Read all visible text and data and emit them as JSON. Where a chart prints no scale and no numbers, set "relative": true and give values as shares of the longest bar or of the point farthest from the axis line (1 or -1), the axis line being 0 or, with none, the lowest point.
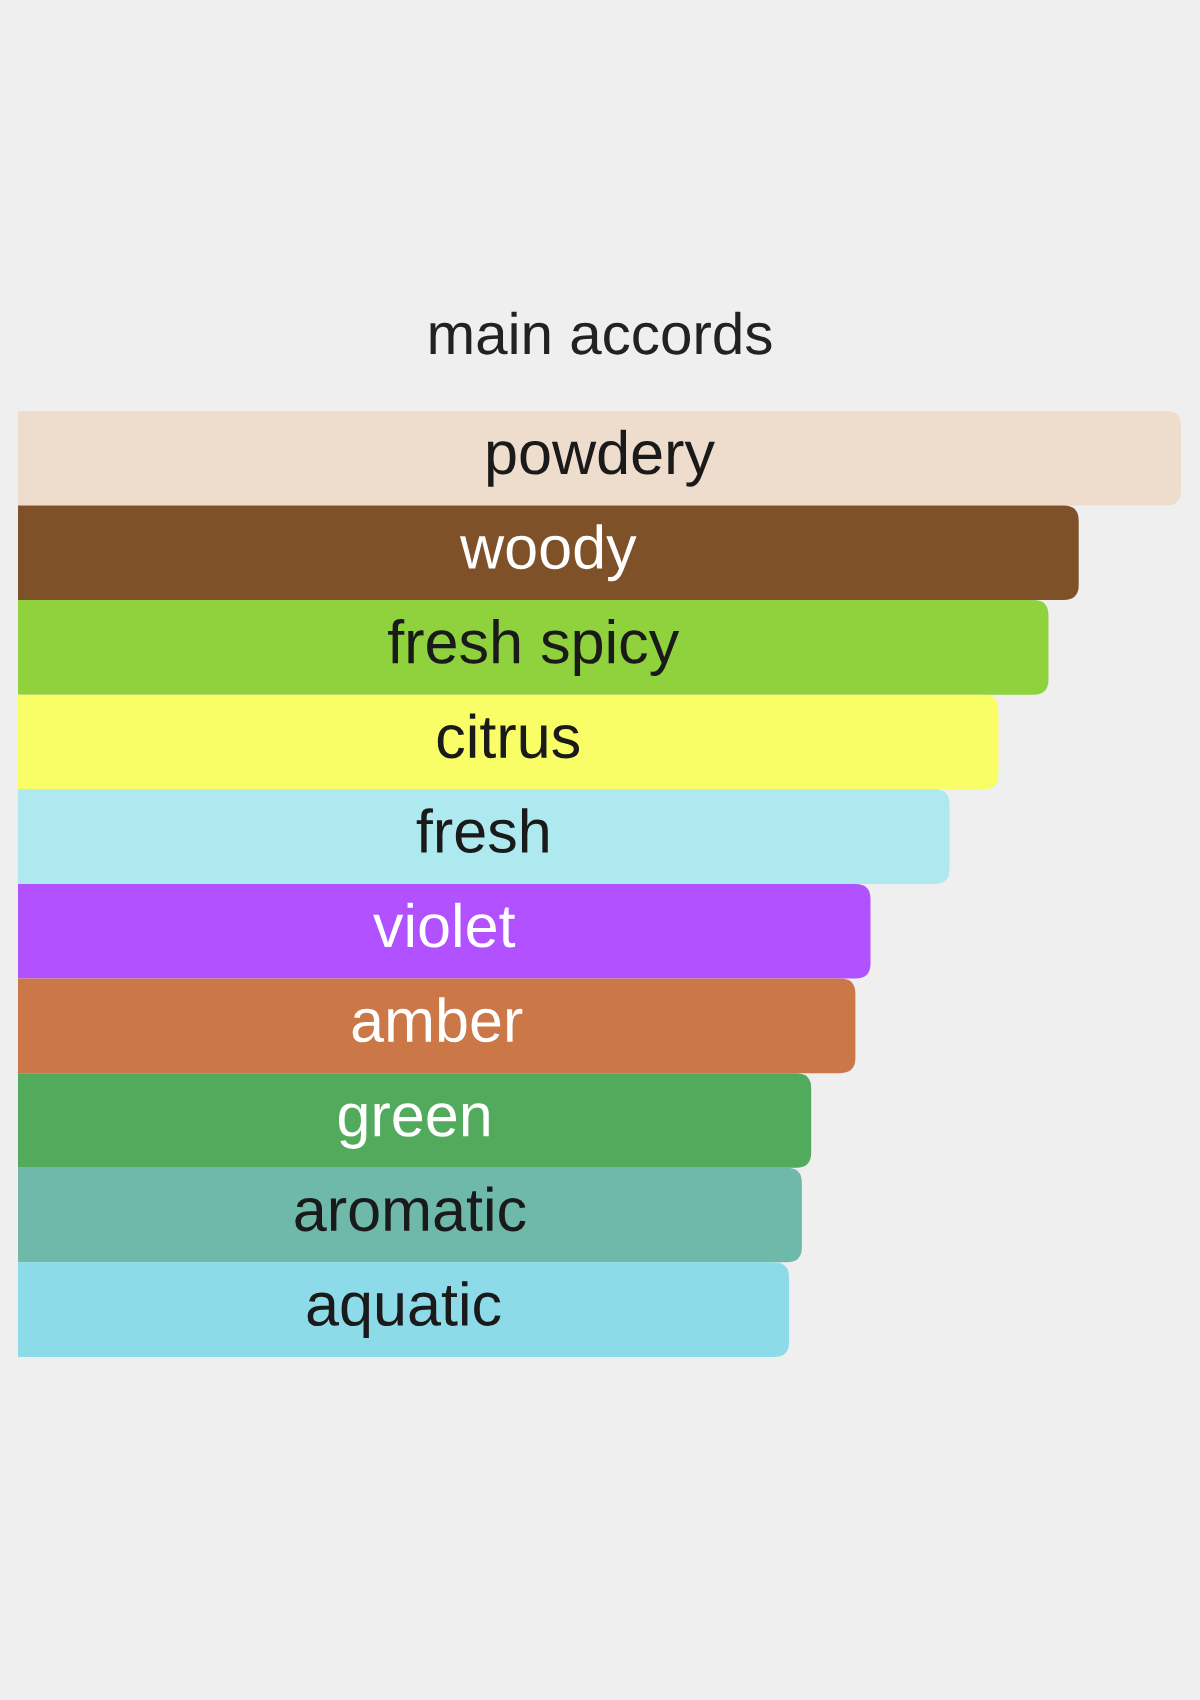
{
  "chart_data": {
    "type": "bar",
    "orientation": "horizontal",
    "relative": true,
    "title": "main accords",
    "categories": [
      "powdery",
      "woody",
      "fresh spicy",
      "citrus",
      "fresh",
      "violet",
      "amber",
      "green",
      "aromatic",
      "aquatic"
    ],
    "values": [
      1,
      0.912,
      0.886,
      0.843,
      0.801,
      0.733,
      0.72,
      0.682,
      0.674,
      0.663
    ],
    "colors": [
      "#eedccd",
      "#7f5128",
      "#8fd23e",
      "#f9fe66",
      "#aee9f0",
      "#b151ff",
      "#cb7748",
      "#52ab5c",
      "#6fb9ab",
      "#8ddbe8"
    ]
  }
}
